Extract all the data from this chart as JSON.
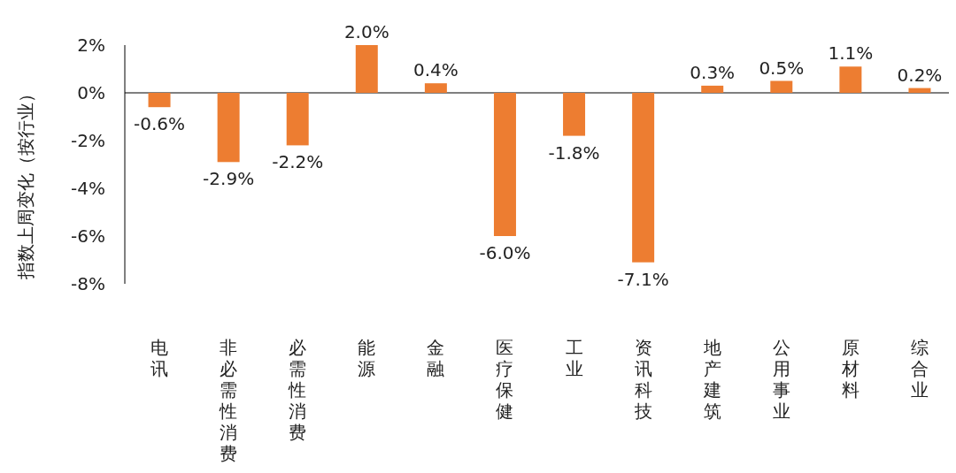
{
  "chart_data": {
    "type": "bar",
    "ylabel": "指数上周变化（按行业）",
    "categories": [
      "电讯",
      "非必需性消费",
      "必需性消费",
      "能源",
      "金融",
      "医疗保健",
      "工业",
      "资讯科技",
      "地产建筑",
      "公用事业",
      "原材料",
      "综合业"
    ],
    "values": [
      -0.6,
      -2.9,
      -2.2,
      2.0,
      0.4,
      -6.0,
      -1.8,
      -7.1,
      0.3,
      0.5,
      1.1,
      0.2
    ],
    "value_labels": [
      "-0.6%",
      "-2.9%",
      "-2.2%",
      "2.0%",
      "0.4%",
      "-6.0%",
      "-1.8%",
      "-7.1%",
      "0.3%",
      "0.5%",
      "1.1%",
      "0.2%"
    ],
    "color": "#ed7d31",
    "ylim": [
      -8,
      2
    ],
    "yticks": [
      {
        "value": 2,
        "label": "2%"
      },
      {
        "value": 0,
        "label": "0%"
      },
      {
        "value": -2,
        "label": "-2%"
      },
      {
        "value": -4,
        "label": "-4%"
      },
      {
        "value": -6,
        "label": "-6%"
      },
      {
        "value": -8,
        "label": "-8%"
      }
    ]
  }
}
